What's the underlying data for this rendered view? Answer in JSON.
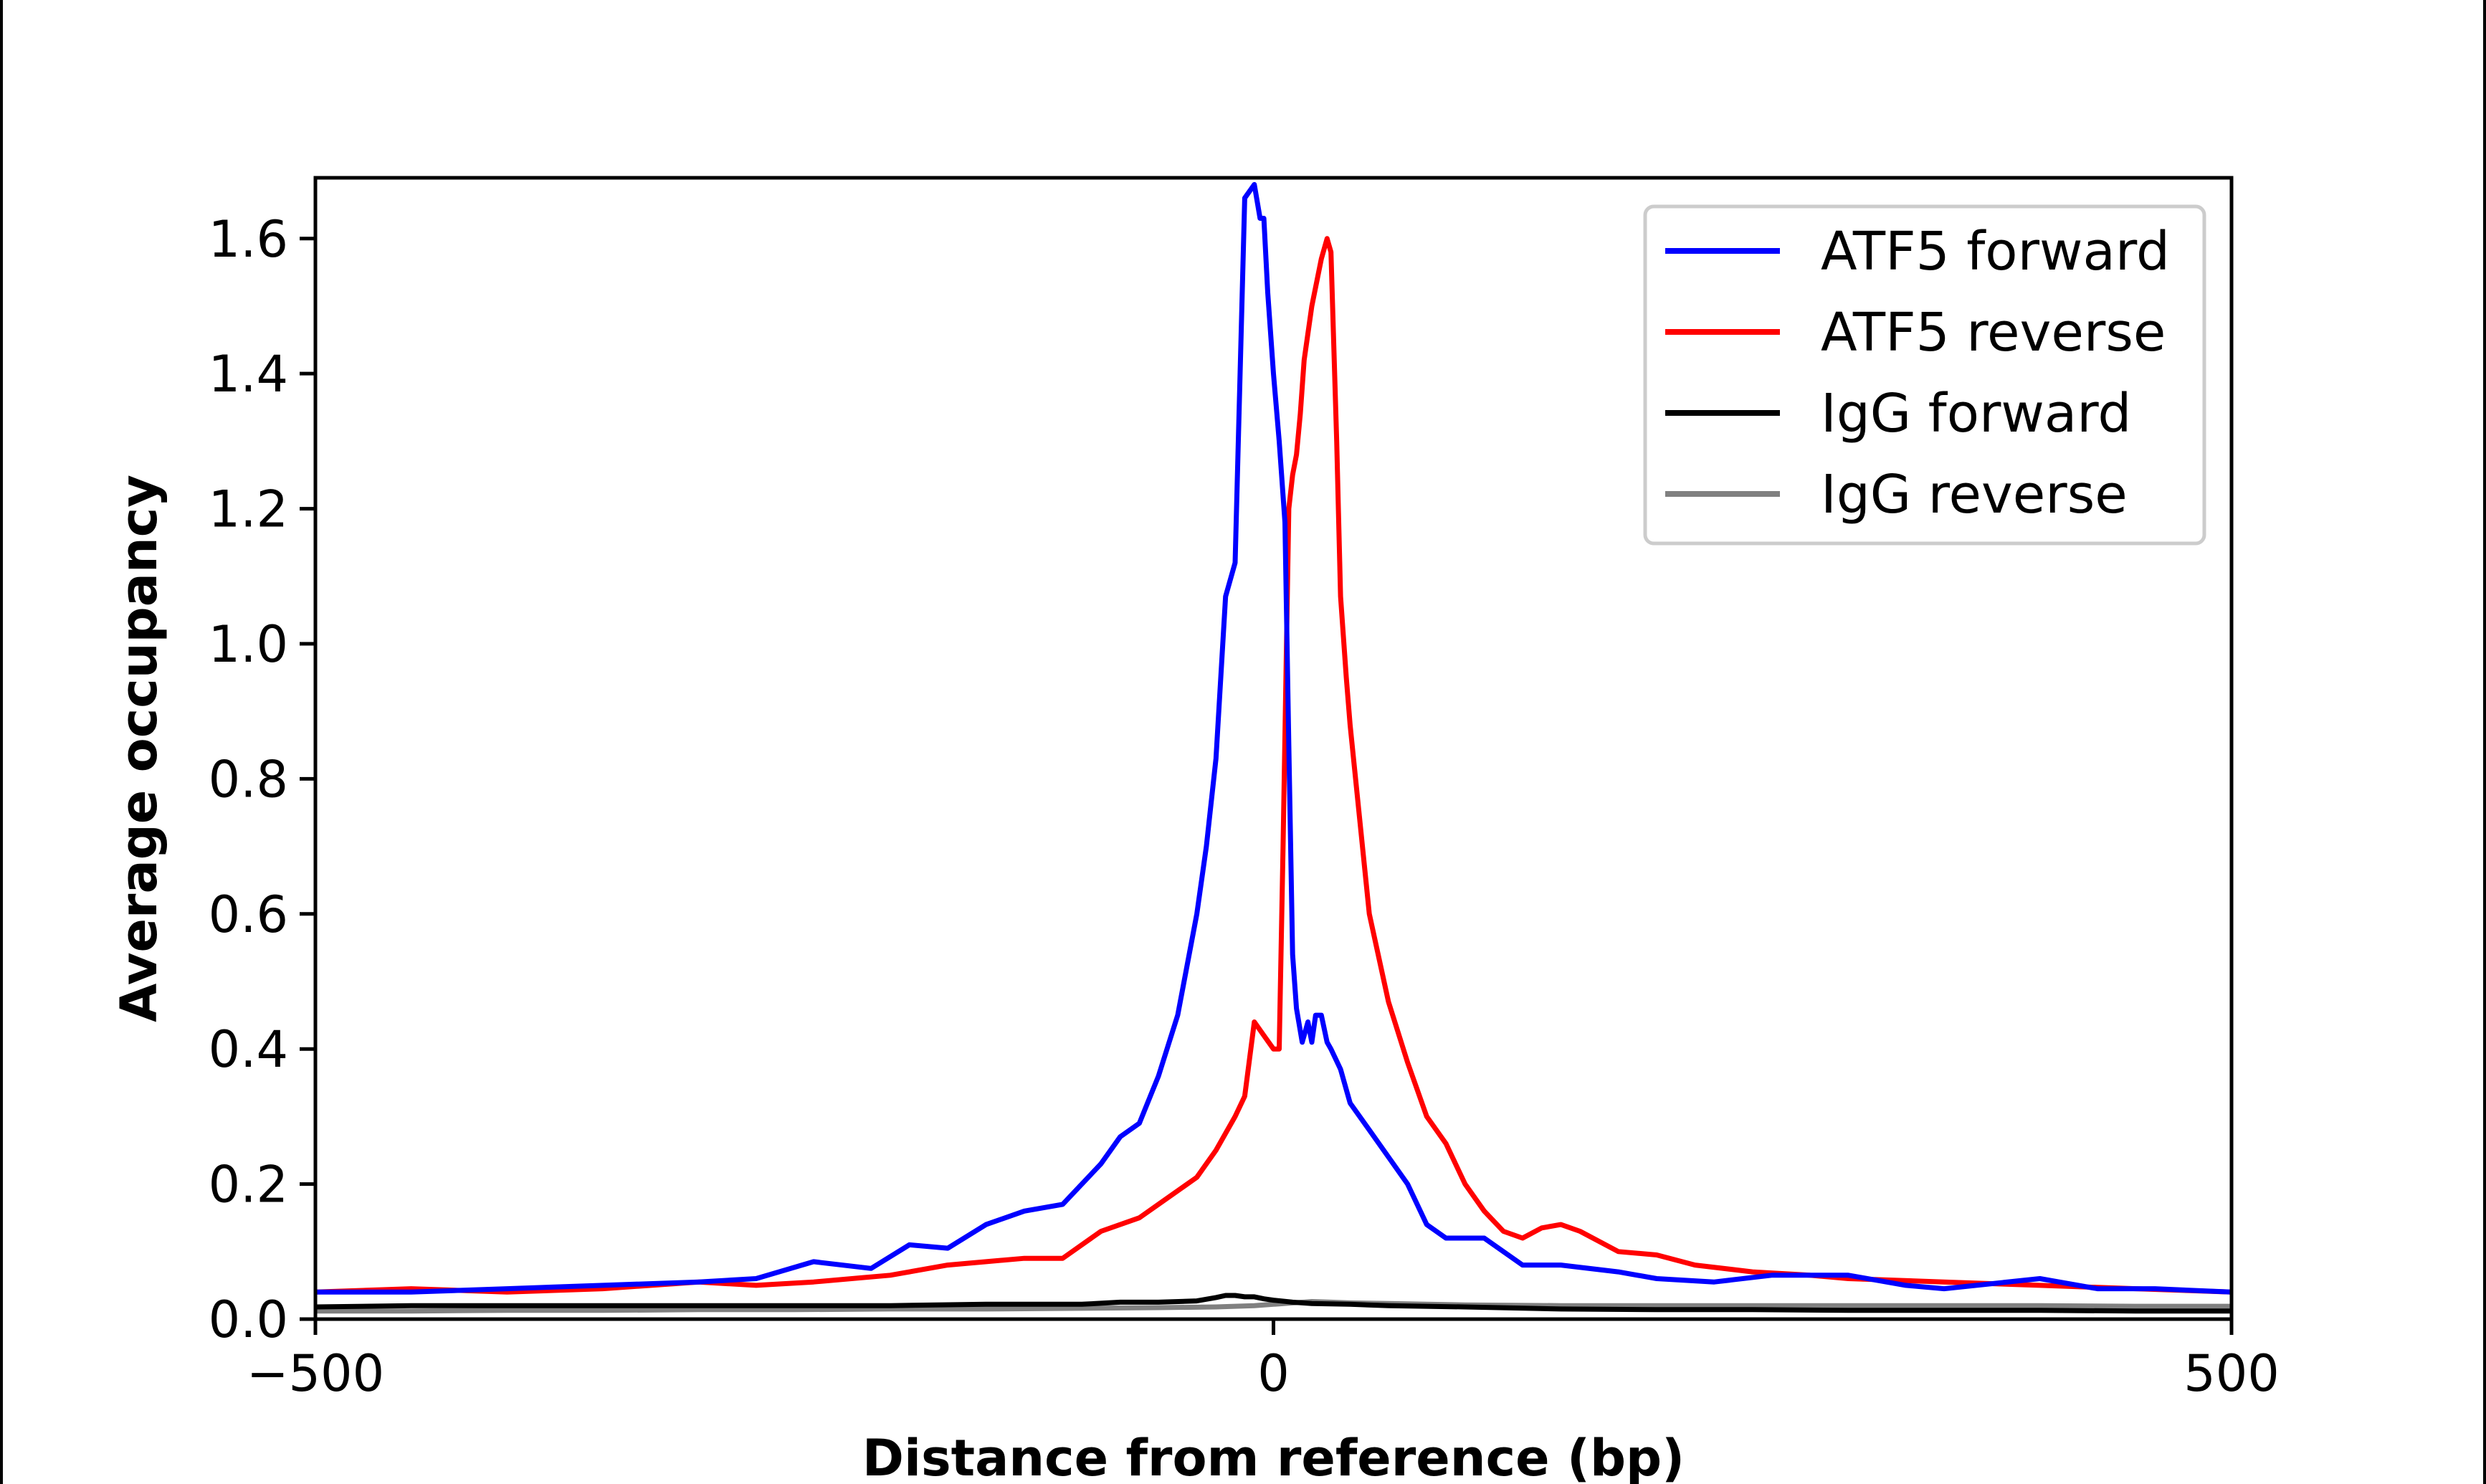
{
  "chart_data": {
    "type": "line",
    "title": "",
    "xlabel": "Distance from reference (bp)",
    "ylabel": "Average occupancy",
    "xlim": [
      -500,
      500
    ],
    "ylim": [
      0,
      1.69
    ],
    "xticks": [
      -500,
      0,
      500
    ],
    "xtick_labels": [
      "−500",
      "0",
      "500"
    ],
    "yticks": [
      0.0,
      0.2,
      0.4,
      0.6,
      0.8,
      1.0,
      1.2,
      1.4,
      1.6
    ],
    "ytick_labels": [
      "0.0",
      "0.2",
      "0.4",
      "0.6",
      "0.8",
      "1.0",
      "1.2",
      "1.4",
      "1.6"
    ],
    "grid": false,
    "legend_position": "top-right",
    "series": [
      {
        "name": "ATF5 forward",
        "color": "#0000ff",
        "x": [
          -500,
          -450,
          -400,
          -350,
          -300,
          -270,
          -240,
          -210,
          -190,
          -170,
          -150,
          -130,
          -110,
          -100,
          -90,
          -80,
          -70,
          -60,
          -50,
          -40,
          -35,
          -30,
          -25,
          -20,
          -15,
          -10,
          -7,
          -5,
          -3,
          0,
          3,
          6,
          8,
          10,
          12,
          15,
          18,
          20,
          22,
          25,
          28,
          30,
          35,
          40,
          50,
          60,
          70,
          80,
          90,
          100,
          110,
          130,
          150,
          180,
          200,
          230,
          260,
          300,
          330,
          350,
          400,
          430,
          460,
          500
        ],
        "y": [
          0.04,
          0.04,
          0.045,
          0.05,
          0.055,
          0.06,
          0.085,
          0.075,
          0.11,
          0.105,
          0.14,
          0.16,
          0.17,
          0.2,
          0.23,
          0.27,
          0.29,
          0.36,
          0.45,
          0.6,
          0.7,
          0.83,
          1.07,
          1.12,
          1.66,
          1.68,
          1.63,
          1.63,
          1.52,
          1.4,
          1.3,
          1.18,
          0.85,
          0.54,
          0.46,
          0.41,
          0.44,
          0.41,
          0.45,
          0.45,
          0.41,
          0.4,
          0.37,
          0.32,
          0.28,
          0.24,
          0.2,
          0.14,
          0.12,
          0.12,
          0.12,
          0.08,
          0.08,
          0.07,
          0.06,
          0.055,
          0.065,
          0.065,
          0.05,
          0.045,
          0.06,
          0.045,
          0.045,
          0.04
        ]
      },
      {
        "name": "ATF5 reverse",
        "color": "#ff0000",
        "x": [
          -500,
          -450,
          -400,
          -350,
          -300,
          -270,
          -240,
          -200,
          -170,
          -150,
          -130,
          -110,
          -90,
          -70,
          -60,
          -50,
          -40,
          -30,
          -20,
          -15,
          -10,
          -5,
          0,
          3,
          5,
          8,
          10,
          12,
          14,
          16,
          20,
          25,
          28,
          30,
          33,
          35,
          38,
          40,
          45,
          50,
          60,
          70,
          80,
          90,
          100,
          110,
          120,
          130,
          140,
          150,
          160,
          180,
          200,
          220,
          250,
          280,
          300,
          350,
          400,
          450,
          500
        ],
        "y": [
          0.04,
          0.045,
          0.04,
          0.045,
          0.055,
          0.05,
          0.055,
          0.065,
          0.08,
          0.085,
          0.09,
          0.09,
          0.13,
          0.15,
          0.17,
          0.19,
          0.21,
          0.25,
          0.3,
          0.33,
          0.44,
          0.42,
          0.4,
          0.4,
          0.7,
          1.2,
          1.25,
          1.28,
          1.34,
          1.42,
          1.5,
          1.57,
          1.6,
          1.58,
          1.3,
          1.07,
          0.95,
          0.88,
          0.74,
          0.6,
          0.47,
          0.38,
          0.3,
          0.26,
          0.2,
          0.16,
          0.13,
          0.12,
          0.135,
          0.14,
          0.13,
          0.1,
          0.095,
          0.08,
          0.07,
          0.065,
          0.06,
          0.055,
          0.05,
          0.045,
          0.04
        ]
      },
      {
        "name": "IgG forward",
        "color": "#000000",
        "x": [
          -500,
          -450,
          -400,
          -350,
          -300,
          -250,
          -200,
          -150,
          -100,
          -80,
          -60,
          -40,
          -30,
          -25,
          -20,
          -15,
          -10,
          -5,
          0,
          10,
          20,
          40,
          60,
          100,
          150,
          200,
          250,
          300,
          350,
          400,
          450,
          500
        ],
        "y": [
          0.018,
          0.02,
          0.02,
          0.02,
          0.02,
          0.02,
          0.02,
          0.022,
          0.022,
          0.025,
          0.025,
          0.027,
          0.032,
          0.035,
          0.035,
          0.033,
          0.033,
          0.03,
          0.028,
          0.025,
          0.023,
          0.022,
          0.02,
          0.018,
          0.015,
          0.014,
          0.014,
          0.013,
          0.013,
          0.013,
          0.012,
          0.012
        ]
      },
      {
        "name": "IgG reverse",
        "color": "#808080",
        "x": [
          -500,
          -450,
          -400,
          -350,
          -300,
          -250,
          -200,
          -150,
          -100,
          -60,
          -30,
          -10,
          0,
          10,
          20,
          30,
          40,
          60,
          80,
          100,
          150,
          200,
          250,
          300,
          350,
          400,
          450,
          500
        ],
        "y": [
          0.012,
          0.012,
          0.013,
          0.013,
          0.014,
          0.014,
          0.015,
          0.015,
          0.016,
          0.017,
          0.018,
          0.02,
          0.022,
          0.024,
          0.026,
          0.025,
          0.024,
          0.023,
          0.022,
          0.021,
          0.02,
          0.02,
          0.02,
          0.02,
          0.02,
          0.02,
          0.019,
          0.019
        ]
      }
    ]
  }
}
